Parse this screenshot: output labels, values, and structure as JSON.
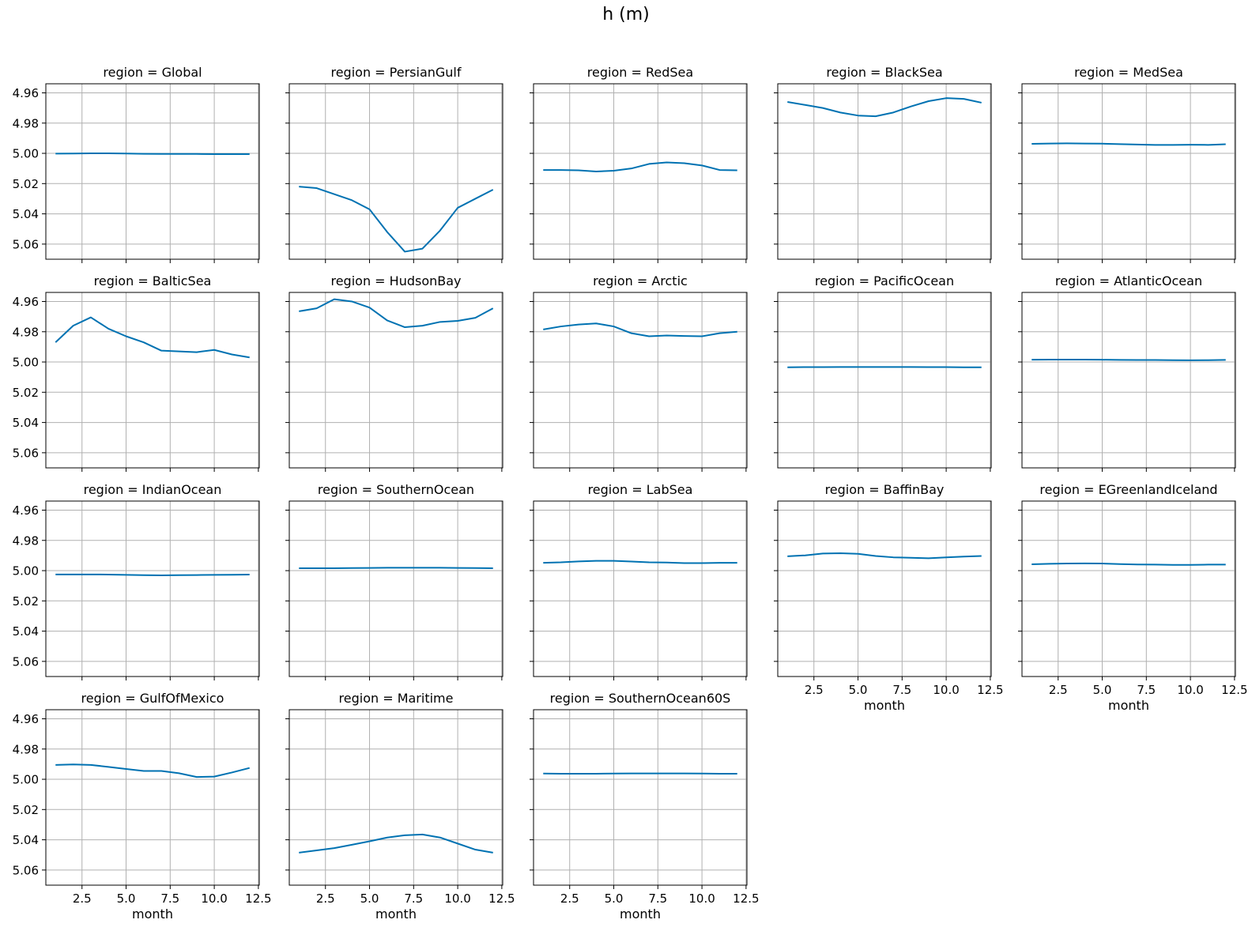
{
  "title": "h (m)",
  "chart_data": {
    "type": "line",
    "title": "h (m)",
    "xlabel": "month",
    "ylabel": "",
    "ylim": [
      5.07,
      4.954
    ],
    "yaxis_inverted": true,
    "xlim": [
      0.45,
      12.55
    ],
    "x_ticks": [
      2.5,
      5.0,
      7.5,
      10.0,
      12.5
    ],
    "x_tick_labels": [
      "2.5",
      "5.0",
      "7.5",
      "10.0",
      "12.5"
    ],
    "y_ticks": [
      4.96,
      4.98,
      5.0,
      5.02,
      5.04,
      5.06
    ],
    "y_tick_labels": [
      "4.96",
      "4.98",
      "5.00",
      "5.02",
      "5.04",
      "5.06"
    ],
    "grid": true,
    "line_color": "#0072B2",
    "x": [
      1,
      2,
      3,
      4,
      5,
      6,
      7,
      8,
      9,
      10,
      11,
      12
    ],
    "panels": [
      {
        "title": "region = Global",
        "values": [
          5.0002,
          5.0001,
          5.0,
          5.0,
          5.0001,
          5.0003,
          5.0004,
          5.0004,
          5.0004,
          5.0005,
          5.0005,
          5.0005
        ]
      },
      {
        "title": "region = PersianGulf",
        "values": [
          5.022,
          5.023,
          5.027,
          5.031,
          5.037,
          5.052,
          5.065,
          5.063,
          5.051,
          5.036,
          5.03,
          5.024
        ]
      },
      {
        "title": "region = RedSea",
        "values": [
          5.011,
          5.011,
          5.0112,
          5.012,
          5.0115,
          5.01,
          5.007,
          5.006,
          5.0065,
          5.008,
          5.011,
          5.0112
        ]
      },
      {
        "title": "region = BlackSea",
        "values": [
          4.966,
          4.968,
          4.97,
          4.973,
          4.975,
          4.9755,
          4.973,
          4.969,
          4.9655,
          4.9635,
          4.964,
          4.9665
        ]
      },
      {
        "title": "region = MedSea",
        "values": [
          4.9937,
          4.9935,
          4.9934,
          4.9935,
          4.9936,
          4.9939,
          4.9942,
          4.9944,
          4.9944,
          4.9943,
          4.9944,
          4.994
        ]
      },
      {
        "title": "region = BalticSea",
        "values": [
          4.987,
          4.976,
          4.9705,
          4.978,
          4.983,
          4.987,
          4.9925,
          4.993,
          4.9935,
          4.992,
          4.995,
          4.997
        ]
      },
      {
        "title": "region = HudsonBay",
        "values": [
          4.9665,
          4.9645,
          4.9585,
          4.96,
          4.964,
          4.9725,
          4.977,
          4.976,
          4.9735,
          4.9728,
          4.9708,
          4.9645
        ]
      },
      {
        "title": "region = Arctic",
        "values": [
          4.9785,
          4.9765,
          4.9752,
          4.9745,
          4.9765,
          4.981,
          4.983,
          4.9825,
          4.9828,
          4.983,
          4.981,
          4.98
        ]
      },
      {
        "title": "region = PacificOcean",
        "values": [
          5.0035,
          5.0034,
          5.0034,
          5.0033,
          5.0033,
          5.0033,
          5.0033,
          5.0033,
          5.0034,
          5.0034,
          5.0035,
          5.0035
        ]
      },
      {
        "title": "region = AtlanticOcean",
        "values": [
          4.9985,
          4.9984,
          4.9984,
          4.9984,
          4.9985,
          4.9986,
          4.9987,
          4.9987,
          4.9988,
          4.9989,
          4.9988,
          4.9986
        ]
      },
      {
        "title": "region = IndianOcean",
        "values": [
          5.0025,
          5.0025,
          5.0025,
          5.0026,
          5.0028,
          5.003,
          5.0031,
          5.003,
          5.0029,
          5.0028,
          5.0027,
          5.0026
        ]
      },
      {
        "title": "region = SouthernOcean",
        "values": [
          4.9984,
          4.9984,
          4.9984,
          4.9983,
          4.9982,
          4.9981,
          4.9981,
          4.9981,
          4.9981,
          4.9982,
          4.9983,
          4.9984
        ]
      },
      {
        "title": "region = LabSea",
        "values": [
          4.9948,
          4.9945,
          4.9939,
          4.9935,
          4.9935,
          4.994,
          4.9945,
          4.9946,
          4.995,
          4.995,
          4.9948,
          4.9948
        ]
      },
      {
        "title": "region = BaffinBay",
        "values": [
          4.9905,
          4.9899,
          4.9887,
          4.9885,
          4.9889,
          4.9903,
          4.9912,
          4.9915,
          4.9918,
          4.9912,
          4.9907,
          4.9903
        ]
      },
      {
        "title": "region = EGreenlandIceland",
        "values": [
          4.9958,
          4.9955,
          4.9953,
          4.9952,
          4.9953,
          4.9957,
          4.9959,
          4.996,
          4.9962,
          4.9962,
          4.996,
          4.996
        ]
      },
      {
        "title": "region = GulfOfMexico",
        "values": [
          4.9905,
          4.9902,
          4.9905,
          4.9918,
          4.9932,
          4.9945,
          4.9945,
          4.996,
          4.9985,
          4.9982,
          4.9955,
          4.9925
        ]
      },
      {
        "title": "region = Maritime",
        "values": [
          5.0485,
          5.047,
          5.0455,
          5.0433,
          5.041,
          5.0385,
          5.037,
          5.0365,
          5.0385,
          5.0425,
          5.0465,
          5.0485
        ]
      },
      {
        "title": "region = SouthernOcean60S",
        "values": [
          4.9962,
          4.9963,
          4.9963,
          4.9963,
          4.9962,
          4.9961,
          4.9961,
          4.9961,
          4.9961,
          4.9962,
          4.9963,
          4.9963
        ]
      }
    ]
  }
}
